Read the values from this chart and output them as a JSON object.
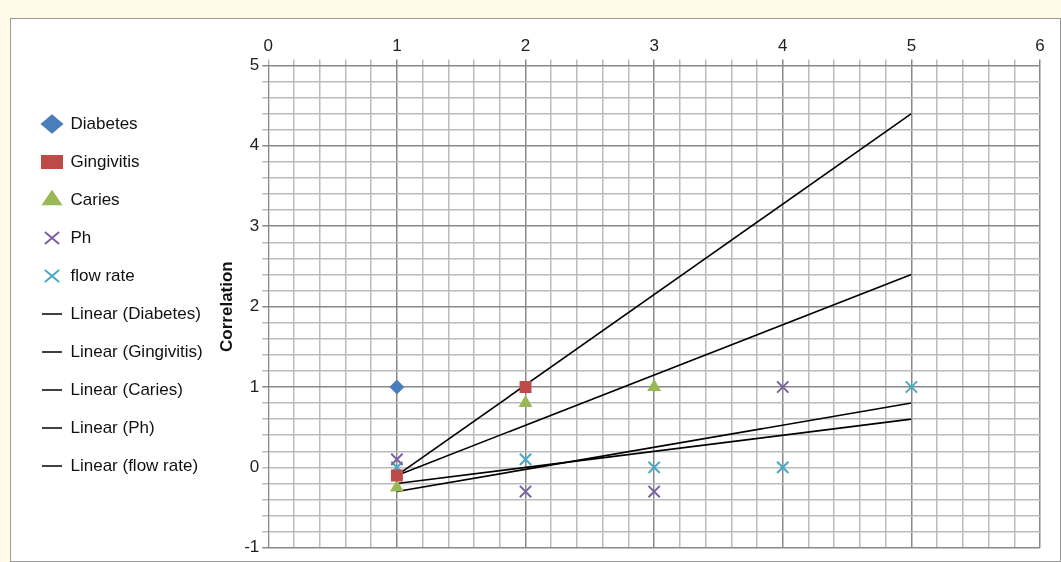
{
  "chart_data": {
    "type": "scatter",
    "ylabel": "Correlation",
    "xlim": [
      0,
      6
    ],
    "xticks": [
      0,
      {
        "value": 0.2,
        "label": null
      },
      {
        "value": 0.4,
        "label": null
      },
      {
        "value": 0.6,
        "label": null
      },
      {
        "value": 0.8,
        "label": null
      },
      1,
      {
        "value": 1.2,
        "label": null
      },
      {
        "value": 1.4,
        "label": null
      },
      {
        "value": 1.6,
        "label": null
      },
      {
        "value": 1.8,
        "label": null
      },
      2,
      {
        "value": 2.2,
        "label": null
      },
      {
        "value": 2.4,
        "label": null
      },
      {
        "value": 2.6,
        "label": null
      },
      {
        "value": 2.8,
        "label": null
      },
      3,
      {
        "value": 3.2,
        "label": null
      },
      {
        "value": 3.4,
        "label": null
      },
      {
        "value": 3.6,
        "label": null
      },
      {
        "value": 3.8,
        "label": null
      },
      4,
      {
        "value": 4.2,
        "label": null
      },
      {
        "value": 4.4,
        "label": null
      },
      {
        "value": 4.6,
        "label": null
      },
      {
        "value": 4.8,
        "label": null
      },
      5,
      {
        "value": 5.2,
        "label": null
      },
      {
        "value": 5.4,
        "label": null
      },
      {
        "value": 5.6,
        "label": null
      },
      {
        "value": 5.8,
        "label": null
      },
      6
    ],
    "ylim": [
      -1,
      5
    ],
    "yticks": [
      -1,
      {
        "value": -0.8,
        "label": null
      },
      {
        "value": -0.6,
        "label": null
      },
      {
        "value": -0.4,
        "label": null
      },
      {
        "value": -0.2,
        "label": null
      },
      0,
      {
        "value": 0.2,
        "label": null
      },
      {
        "value": 0.4,
        "label": null
      },
      {
        "value": 0.6,
        "label": null
      },
      {
        "value": 0.8,
        "label": null
      },
      1,
      {
        "value": 1.2,
        "label": null
      },
      {
        "value": 1.4,
        "label": null
      },
      {
        "value": 1.6,
        "label": null
      },
      {
        "value": 1.8,
        "label": null
      },
      2,
      {
        "value": 2.2,
        "label": null
      },
      {
        "value": 2.4,
        "label": null
      },
      {
        "value": 2.6,
        "label": null
      },
      {
        "value": 2.8,
        "label": null
      },
      3,
      {
        "value": 3.2,
        "label": null
      },
      {
        "value": 3.4,
        "label": null
      },
      {
        "value": 3.6,
        "label": null
      },
      {
        "value": 3.8,
        "label": null
      },
      4,
      {
        "value": 4.2,
        "label": null
      },
      {
        "value": 4.4,
        "label": null
      },
      {
        "value": 4.6,
        "label": null
      },
      {
        "value": 4.8,
        "label": null
      },
      5
    ],
    "grid": true,
    "legend": "left",
    "series": [
      {
        "name": "Diabetes",
        "color": "#4a7ebb",
        "marker": "diamond",
        "x": [
          1
        ],
        "values": [
          1
        ]
      },
      {
        "name": "Gingivitis",
        "color": "#be4b48",
        "marker": "square",
        "x": [
          1,
          2
        ],
        "values": [
          -0.1,
          1
        ]
      },
      {
        "name": "Caries",
        "color": "#98b954",
        "marker": "triangle",
        "x": [
          1,
          2,
          3
        ],
        "values": [
          -0.25,
          0.8,
          1
        ]
      },
      {
        "name": "Ph",
        "color": "#7d60a0",
        "marker": "cross",
        "x": [
          1,
          2,
          3,
          4
        ],
        "values": [
          0.1,
          -0.3,
          -0.3,
          1
        ]
      },
      {
        "name": "flow rate",
        "color": "#46aac5",
        "marker": "cross",
        "x": [
          1,
          2,
          3,
          4,
          5
        ],
        "values": [
          0,
          0.1,
          0,
          0,
          1
        ]
      },
      {
        "name": "Linear (Diabetes)",
        "type": "line",
        "color": "#000000",
        "marker": "none"
      },
      {
        "name": "Linear (Gingivitis)",
        "type": "line",
        "color": "#000000",
        "marker": "none",
        "x": [
          1,
          5
        ],
        "values": [
          -0.1,
          4.4
        ]
      },
      {
        "name": "Linear (Caries)",
        "type": "line",
        "color": "#000000",
        "marker": "none",
        "x": [
          1,
          5
        ],
        "values": [
          -0.1,
          2.4
        ]
      },
      {
        "name": "Linear (Ph)",
        "type": "line",
        "color": "#000000",
        "marker": "none",
        "x": [
          1,
          5
        ],
        "values": [
          -0.3,
          0.8
        ]
      },
      {
        "name": "Linear (flow rate)",
        "type": "line",
        "color": "#000000",
        "marker": "none",
        "x": [
          1,
          5
        ],
        "values": [
          -0.2,
          0.6
        ]
      }
    ]
  }
}
